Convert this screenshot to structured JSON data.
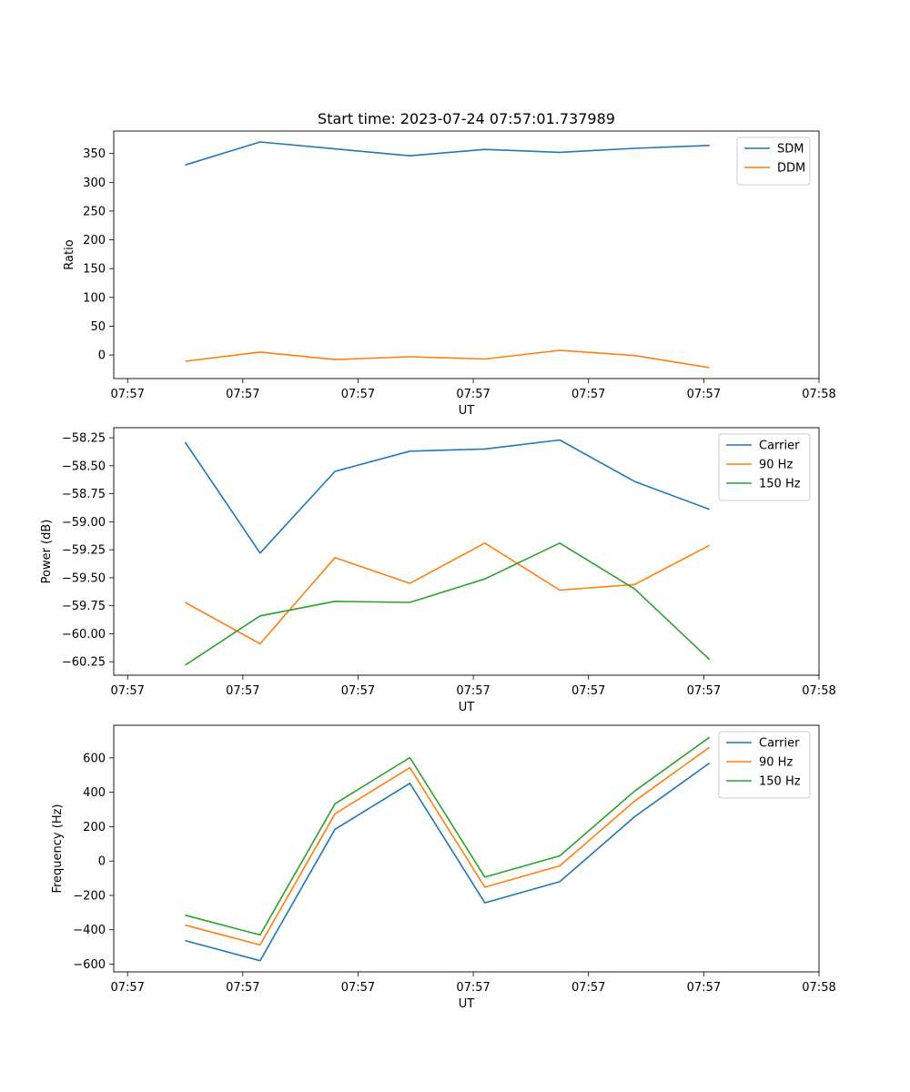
{
  "figure": {
    "title": "Start time: 2023-07-24 07:57:01.737989"
  },
  "chart_data": [
    {
      "type": "line",
      "title": "Start time: 2023-07-24 07:57:01.737989",
      "xlabel": "UT",
      "ylabel": "Ratio",
      "x_tick_labels": [
        "07:57",
        "07:57",
        "07:57",
        "07:57",
        "07:57",
        "07:57",
        "07:58"
      ],
      "x_range": [
        -0.12,
        6.0
      ],
      "x": [
        0.5,
        1.15,
        1.8,
        2.45,
        3.1,
        3.75,
        4.4,
        5.05
      ],
      "ylim": [
        -41,
        389
      ],
      "y_ticks": [
        0,
        50,
        100,
        150,
        200,
        250,
        300,
        350
      ],
      "y_tick_labels": [
        "0",
        "50",
        "100",
        "150",
        "200",
        "250",
        "300",
        "350"
      ],
      "legend_position": "top-right",
      "series": [
        {
          "name": "SDM",
          "color": "#1f77b4",
          "values": [
            330,
            370,
            358,
            346,
            357,
            352,
            359,
            364
          ]
        },
        {
          "name": "DDM",
          "color": "#ff7f0e",
          "values": [
            -11,
            5,
            -8,
            -3,
            -7,
            8,
            -1,
            -22
          ]
        }
      ]
    },
    {
      "type": "line",
      "title": "",
      "xlabel": "UT",
      "ylabel": "Power (dB)",
      "x_tick_labels": [
        "07:57",
        "07:57",
        "07:57",
        "07:57",
        "07:57",
        "07:57",
        "07:58"
      ],
      "x_range": [
        -0.12,
        6.0
      ],
      "x": [
        0.5,
        1.15,
        1.8,
        2.45,
        3.1,
        3.75,
        4.4,
        5.05
      ],
      "ylim": [
        -60.37,
        -58.16
      ],
      "y_ticks": [
        -58.25,
        -58.5,
        -58.75,
        -59.0,
        -59.25,
        -59.5,
        -59.75,
        -60.0,
        -60.25
      ],
      "y_tick_labels": [
        "−58.25",
        "−58.50",
        "−58.75",
        "−59.00",
        "−59.25",
        "−59.50",
        "−59.75",
        "−60.00",
        "−60.25"
      ],
      "legend_position": "top-right",
      "series": [
        {
          "name": "Carrier",
          "color": "#1f77b4",
          "values": [
            -58.29,
            -59.28,
            -58.55,
            -58.37,
            -58.35,
            -58.27,
            -58.64,
            -58.89
          ]
        },
        {
          "name": "90 Hz",
          "color": "#ff7f0e",
          "values": [
            -59.72,
            -60.09,
            -59.32,
            -59.55,
            -59.19,
            -59.61,
            -59.56,
            -59.21
          ]
        },
        {
          "name": "150 Hz",
          "color": "#2ca02c",
          "values": [
            -60.28,
            -59.84,
            -59.71,
            -59.72,
            -59.51,
            -59.19,
            -59.6,
            -60.23
          ]
        }
      ]
    },
    {
      "type": "line",
      "title": "",
      "xlabel": "UT",
      "ylabel": "Frequency (Hz)",
      "x_tick_labels": [
        "07:57",
        "07:57",
        "07:57",
        "07:57",
        "07:57",
        "07:57",
        "07:58"
      ],
      "x_range": [
        -0.12,
        6.0
      ],
      "x": [
        0.5,
        1.15,
        1.8,
        2.45,
        3.1,
        3.75,
        4.4,
        5.05
      ],
      "ylim": [
        -645,
        790
      ],
      "y_ticks": [
        -600,
        -400,
        -200,
        0,
        200,
        400,
        600
      ],
      "y_tick_labels": [
        "−600",
        "−400",
        "−200",
        "0",
        "200",
        "400",
        "600"
      ],
      "legend_position": "top-right",
      "series": [
        {
          "name": "Carrier",
          "color": "#1f77b4",
          "values": [
            -463,
            -580,
            185,
            452,
            -243,
            -120,
            258,
            570
          ]
        },
        {
          "name": "90 Hz",
          "color": "#ff7f0e",
          "values": [
            -373,
            -488,
            275,
            543,
            -152,
            -28,
            349,
            662
          ]
        },
        {
          "name": "150 Hz",
          "color": "#2ca02c",
          "values": [
            -315,
            -430,
            333,
            602,
            -94,
            30,
            407,
            720
          ]
        }
      ]
    }
  ]
}
